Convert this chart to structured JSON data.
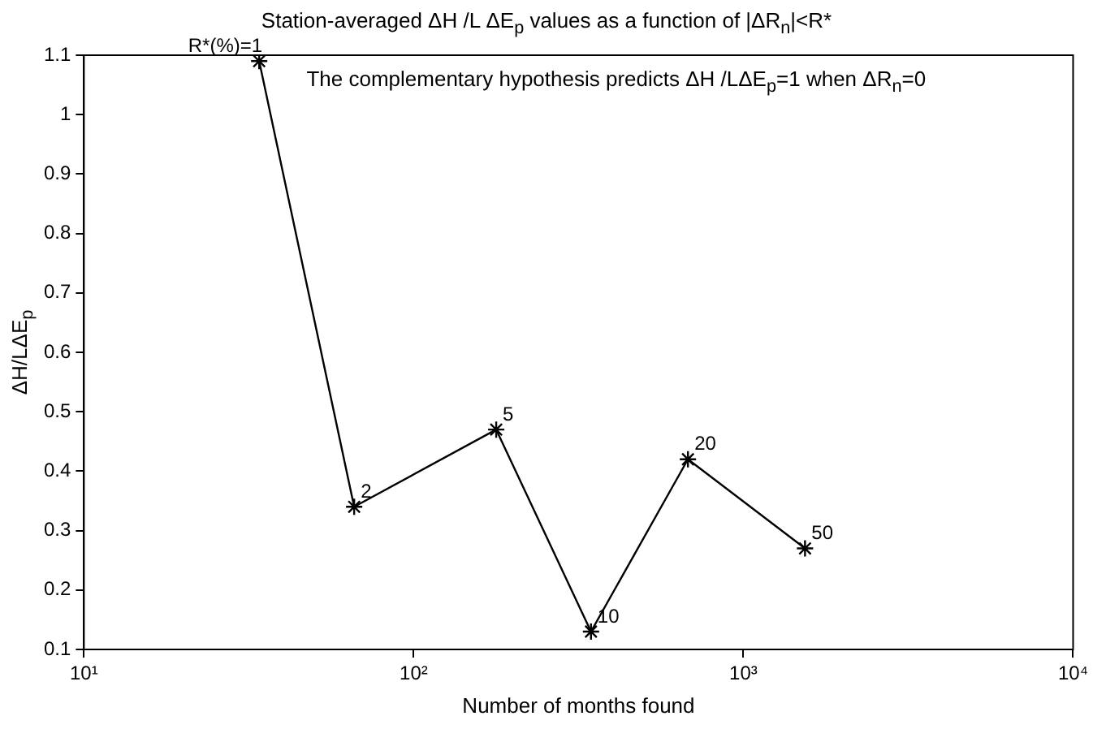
{
  "chart_data": {
    "type": "line",
    "title": "Station-averaged ΔH /L ΔE$_{p}$ values as a function of |ΔR$_{n}$|<R*",
    "xlabel": "Number of months found",
    "ylabel": "ΔH/LΔE$_{p}$",
    "annotations": [
      "The complementary hypothesis predicts ΔH /LΔE$_{p}$=1 when ΔR$_{n}$=0",
      {
        "text": "R*(%)=1",
        "x": 34,
        "y": 1.09
      },
      {
        "text": "2",
        "x": 66,
        "y": 0.34
      },
      {
        "text": "5",
        "x": 178,
        "y": 0.47
      },
      {
        "text": "10",
        "x": 345,
        "y": 0.13
      },
      {
        "text": "20",
        "x": 679,
        "y": 0.42
      },
      {
        "text": "50",
        "x": 1538,
        "y": 0.27
      }
    ],
    "x": [
      34,
      66,
      178,
      345,
      679,
      1538
    ],
    "series": [
      {
        "color": "#000000",
        "values": [
          1.09,
          0.34,
          0.47,
          0.13,
          0.42,
          0.27
        ]
      }
    ],
    "log": "x",
    "xlim": [
      10,
      10000
    ],
    "xticks": [
      {
        "value": 10,
        "label": "10¹"
      },
      {
        "value": 100,
        "label": "10²"
      },
      {
        "value": 1000,
        "label": "10³"
      },
      {
        "value": 10000,
        "label": "10⁴"
      }
    ],
    "ylim": [
      0.1,
      1.1
    ],
    "yticks": [
      0.1,
      0.2,
      0.3,
      0.4,
      0.5,
      0.6,
      0.7,
      0.8,
      0.9,
      1,
      1.1
    ],
    "grid": false,
    "legend": false,
    "marker": "cross",
    "line_style": "solid"
  }
}
